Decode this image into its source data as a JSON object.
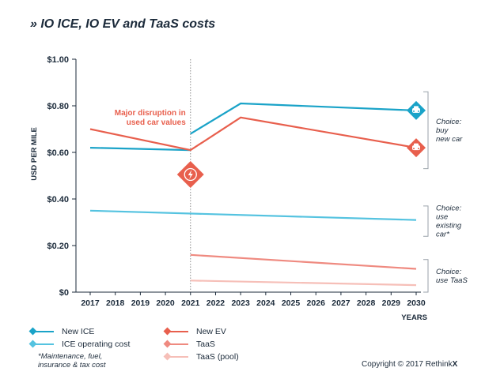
{
  "title": "» IO ICE, IO EV and TaaS costs",
  "chart_data": {
    "type": "line",
    "ylabel": "USD PER MILE",
    "xlabel": "YEARS",
    "x_ticks": [
      "2017",
      "2018",
      "2019",
      "2020",
      "2021",
      "2022",
      "2023",
      "2024",
      "2025",
      "2026",
      "2027",
      "2028",
      "2029",
      "2030"
    ],
    "y_ticks": [
      "$0",
      "$0.20",
      "$0.40",
      "$0.60",
      "$0.80",
      "$1.00"
    ],
    "ylim": [
      0,
      1.0
    ],
    "xlim": [
      2017,
      2030
    ],
    "grid": false,
    "series": [
      {
        "name": "New ICE",
        "color": "#1aa3c8",
        "segments": [
          [
            [
              2017,
              0.62
            ],
            [
              2021,
              0.61
            ]
          ],
          [
            [
              2021,
              0.68
            ],
            [
              2023,
              0.81
            ],
            [
              2030,
              0.78
            ]
          ]
        ],
        "end_marker": "car-icon"
      },
      {
        "name": "New EV",
        "color": "#e85f4d",
        "segments": [
          [
            [
              2017,
              0.7
            ],
            [
              2021,
              0.61
            ],
            [
              2023,
              0.75
            ],
            [
              2030,
              0.62
            ]
          ]
        ],
        "end_marker": "car-icon"
      },
      {
        "name": "ICE operating cost",
        "color": "#55c3e0",
        "segments": [
          [
            [
              2017,
              0.35
            ],
            [
              2030,
              0.31
            ]
          ]
        ]
      },
      {
        "name": "TaaS",
        "color": "#ef8a80",
        "segments": [
          [
            [
              2021,
              0.16
            ],
            [
              2030,
              0.1
            ]
          ]
        ]
      },
      {
        "name": "TaaS (pool)",
        "color": "#f6bfb8",
        "segments": [
          [
            [
              2021,
              0.05
            ],
            [
              2030,
              0.03
            ]
          ]
        ]
      }
    ],
    "annotations": {
      "disruption_line1": "Major disruption in",
      "disruption_line2": "used car values",
      "disruption_year": 2021,
      "disruption_value": 0.505
    },
    "choices": [
      {
        "lines": [
          "Choice:",
          "buy",
          "new car"
        ],
        "range": [
          0.53,
          0.86
        ]
      },
      {
        "lines": [
          "Choice:",
          "use",
          "existing",
          "car*"
        ],
        "range": [
          0.24,
          0.37
        ]
      },
      {
        "lines": [
          "Choice:",
          "use TaaS"
        ],
        "range": [
          0.0,
          0.14
        ]
      }
    ]
  },
  "legend": [
    {
      "label": "New ICE",
      "color": "#1aa3c8"
    },
    {
      "label": "ICE operating cost",
      "color": "#55c3e0"
    },
    {
      "label": "New EV",
      "color": "#e85f4d"
    },
    {
      "label": "TaaS",
      "color": "#ef8a80"
    },
    {
      "label": "TaaS (pool)",
      "color": "#f6bfb8"
    }
  ],
  "footnote": [
    "*Maintenance, fuel,",
    "insurance & tax cost"
  ],
  "copyright_prefix": "Copyright © 2017 Rethink",
  "copyright_brand": "X"
}
